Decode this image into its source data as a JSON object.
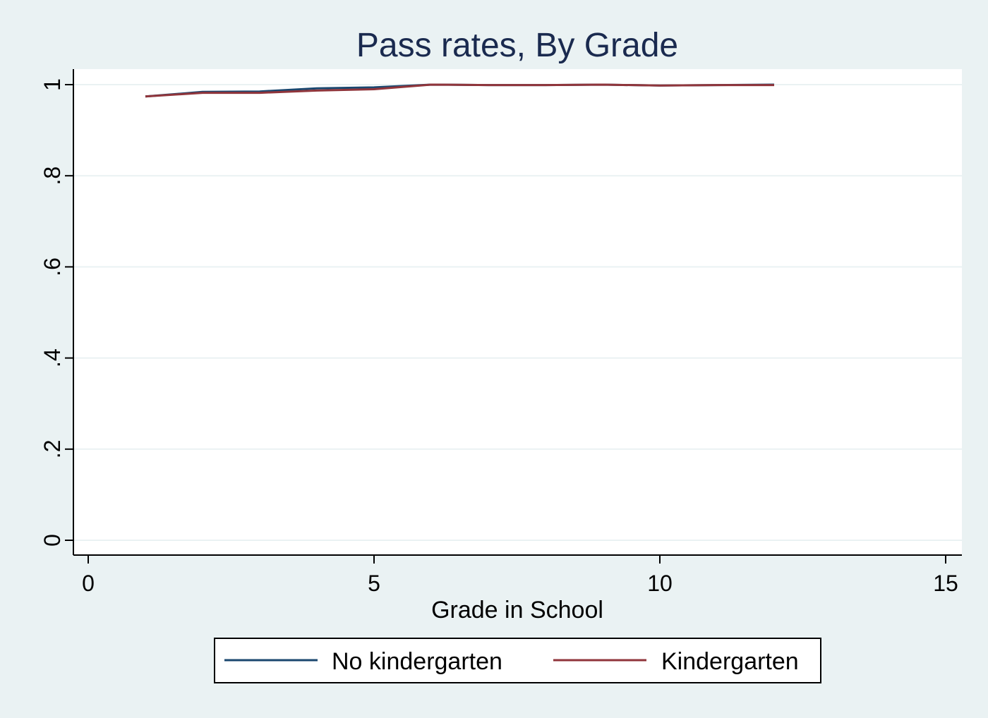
{
  "chart_data": {
    "type": "line",
    "title": "Pass rates, By Grade",
    "xlabel": "Grade in School",
    "ylabel": "",
    "xlim": [
      0,
      15
    ],
    "ylim": [
      0,
      1
    ],
    "xticks": [
      0,
      5,
      10,
      15
    ],
    "xtick_labels": [
      "0",
      "5",
      "10",
      "15"
    ],
    "yticks": [
      0,
      0.2,
      0.4,
      0.6,
      0.8,
      1
    ],
    "ytick_labels": [
      "0",
      ".2",
      ".4",
      ".6",
      ".8",
      "1"
    ],
    "grid": true,
    "legend_position": "bottom",
    "x": [
      1,
      2,
      3,
      4,
      5,
      6,
      7,
      8,
      9,
      10,
      11,
      12
    ],
    "series": [
      {
        "name": "No kindergarten",
        "color": "#1a476f",
        "values": [
          0.974,
          0.984,
          0.985,
          0.992,
          0.994,
          1.0,
          0.999,
          0.999,
          1.0,
          0.998,
          0.999,
          1.0
        ]
      },
      {
        "name": "Kindergarten",
        "color": "#90353b",
        "values": [
          0.974,
          0.982,
          0.982,
          0.987,
          0.99,
          1.0,
          0.999,
          0.999,
          1.0,
          0.998,
          0.999,
          0.999
        ]
      }
    ],
    "colors": {
      "background": "#eaf2f3",
      "plot_background": "#ffffff",
      "grid": "#eaf2f3",
      "title": "#1a2a4f"
    }
  }
}
